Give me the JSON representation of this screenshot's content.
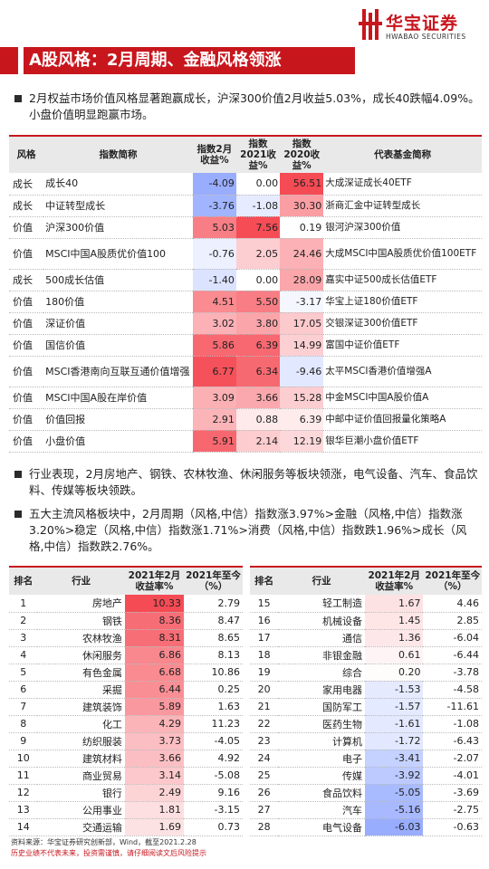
{
  "brand": {
    "cn": "华宝证券",
    "en": "HWABAO SECURITIES",
    "color": "#c8161d"
  },
  "title": "A股风格：2月周期、金融风格领涨",
  "bullets": [
    "2月权益市场价值风格显著跑赢成长，沪深300价值2月收益5.03%，成长40跌幅4.09%。小盘价值明显跑赢市场。",
    "行业表现，2月房地产、钢铁、农林牧渔、休闲服务等板块领涨，电气设备、汽车、食品饮料、传媒等板块领跌。",
    "五大主流风格板块中，2月周期（风格,中信）指数涨3.97%>金融（风格,中信）指数涨3.20%>稳定（风格,中信）指数涨1.71%>消费（风格,中信）指数跌1.96%>成长（风格,中信）指数跌2.76%。"
  ],
  "style_table": {
    "headers": [
      "风格",
      "指数简称",
      "指数2月收益%",
      "指数2021收益%",
      "指数2020收益%",
      "代表基金简称"
    ],
    "rows": [
      {
        "style": "成长",
        "name": "成长40",
        "feb": -4.09,
        "y2021": 0.0,
        "y2020": 56.51,
        "fund": "大成深证成长40ETF"
      },
      {
        "style": "成长",
        "name": "中证转型成长",
        "feb": -3.76,
        "y2021": -1.08,
        "y2020": 30.3,
        "fund": "浙商汇金中证转型成长"
      },
      {
        "style": "价值",
        "name": "沪深300价值",
        "feb": 5.03,
        "y2021": 7.56,
        "y2020": 0.19,
        "fund": "银河沪深300价值"
      },
      {
        "style": "价值",
        "name": "MSCI中国A股质优价值100",
        "feb": -0.76,
        "y2021": 2.05,
        "y2020": 24.46,
        "fund": "大成MSCI中国A股质优价值100ETF"
      },
      {
        "style": "成长",
        "name": "500成长估值",
        "feb": -1.4,
        "y2021": 0.0,
        "y2020": 28.09,
        "fund": "嘉实中证500成长估值ETF"
      },
      {
        "style": "价值",
        "name": "180价值",
        "feb": 4.51,
        "y2021": 5.5,
        "y2020": -3.17,
        "fund": "华宝上证180价值ETF"
      },
      {
        "style": "价值",
        "name": "深证价值",
        "feb": 3.02,
        "y2021": 3.8,
        "y2020": 17.05,
        "fund": "交银深证300价值ETF"
      },
      {
        "style": "价值",
        "name": "国信价值",
        "feb": 5.86,
        "y2021": 6.39,
        "y2020": 14.99,
        "fund": "富国中证价值ETF"
      },
      {
        "style": "价值",
        "name": "MSCI香港南向互联互通价值增强",
        "feb": 6.77,
        "y2021": 6.34,
        "y2020": -9.46,
        "fund": "太平MSCI香港价值增强A"
      },
      {
        "style": "价值",
        "name": "MSCI中国A股在岸价值",
        "feb": 3.09,
        "y2021": 3.66,
        "y2020": 15.28,
        "fund": "中金MSCI中国A股价值A"
      },
      {
        "style": "价值",
        "name": "价值回报",
        "feb": 2.91,
        "y2021": 0.88,
        "y2020": 6.39,
        "fund": "中邮中证价值回报量化策略A"
      },
      {
        "style": "价值",
        "name": "小盘价值",
        "feb": 5.91,
        "y2021": 2.14,
        "y2020": 12.19,
        "fund": "银华巨潮小盘价值ETF"
      }
    ]
  },
  "industry_headers": [
    "排名",
    "行业",
    "2021年2月收益率%",
    "2021年至今（%）"
  ],
  "industry_left": [
    {
      "rank": 1,
      "name": "房地产",
      "feb": 10.33,
      "ytd": 2.79
    },
    {
      "rank": 2,
      "name": "钢铁",
      "feb": 8.36,
      "ytd": 8.47
    },
    {
      "rank": 3,
      "name": "农林牧渔",
      "feb": 8.31,
      "ytd": 8.65
    },
    {
      "rank": 4,
      "name": "休闲服务",
      "feb": 6.86,
      "ytd": 8.13
    },
    {
      "rank": 5,
      "name": "有色金属",
      "feb": 6.68,
      "ytd": 10.86
    },
    {
      "rank": 6,
      "name": "采掘",
      "feb": 6.44,
      "ytd": 0.25
    },
    {
      "rank": 7,
      "name": "建筑装饰",
      "feb": 5.89,
      "ytd": 1.63
    },
    {
      "rank": 8,
      "name": "化工",
      "feb": 4.29,
      "ytd": 11.23
    },
    {
      "rank": 9,
      "name": "纺织服装",
      "feb": 3.73,
      "ytd": -4.05
    },
    {
      "rank": 10,
      "name": "建筑材料",
      "feb": 3.66,
      "ytd": 4.92
    },
    {
      "rank": 11,
      "name": "商业贸易",
      "feb": 3.14,
      "ytd": -5.08
    },
    {
      "rank": 12,
      "name": "银行",
      "feb": 2.49,
      "ytd": 9.16
    },
    {
      "rank": 13,
      "name": "公用事业",
      "feb": 1.81,
      "ytd": -3.15
    },
    {
      "rank": 14,
      "name": "交通运输",
      "feb": 1.69,
      "ytd": 0.73
    }
  ],
  "industry_right": [
    {
      "rank": 15,
      "name": "轻工制造",
      "feb": 1.67,
      "ytd": 4.46
    },
    {
      "rank": 16,
      "name": "机械设备",
      "feb": 1.45,
      "ytd": 2.85
    },
    {
      "rank": 17,
      "name": "通信",
      "feb": 1.36,
      "ytd": -6.04
    },
    {
      "rank": 18,
      "name": "非银金融",
      "feb": 0.61,
      "ytd": -6.44
    },
    {
      "rank": 19,
      "name": "综合",
      "feb": 0.2,
      "ytd": -3.78
    },
    {
      "rank": 20,
      "name": "家用电器",
      "feb": -1.53,
      "ytd": -4.58
    },
    {
      "rank": 21,
      "name": "国防军工",
      "feb": -1.57,
      "ytd": -11.61
    },
    {
      "rank": 22,
      "name": "医药生物",
      "feb": -1.61,
      "ytd": -1.08
    },
    {
      "rank": 23,
      "name": "计算机",
      "feb": -1.72,
      "ytd": -6.43
    },
    {
      "rank": 24,
      "name": "电子",
      "feb": -3.41,
      "ytd": -2.07
    },
    {
      "rank": 25,
      "name": "传媒",
      "feb": -3.92,
      "ytd": -4.01
    },
    {
      "rank": 26,
      "name": "食品饮料",
      "feb": -5.05,
      "ytd": -3.69
    },
    {
      "rank": 27,
      "name": "汽车",
      "feb": -5.16,
      "ytd": -2.75
    },
    {
      "rank": 28,
      "name": "电气设备",
      "feb": -6.03,
      "ytd": -0.63
    }
  ],
  "source": "资料来源：华宝证券研究创新部，Wind，截至2021.2.28",
  "disclaimer": "历史业绩不代表未来，投资需谨慎，请仔细阅读文后风险提示"
}
